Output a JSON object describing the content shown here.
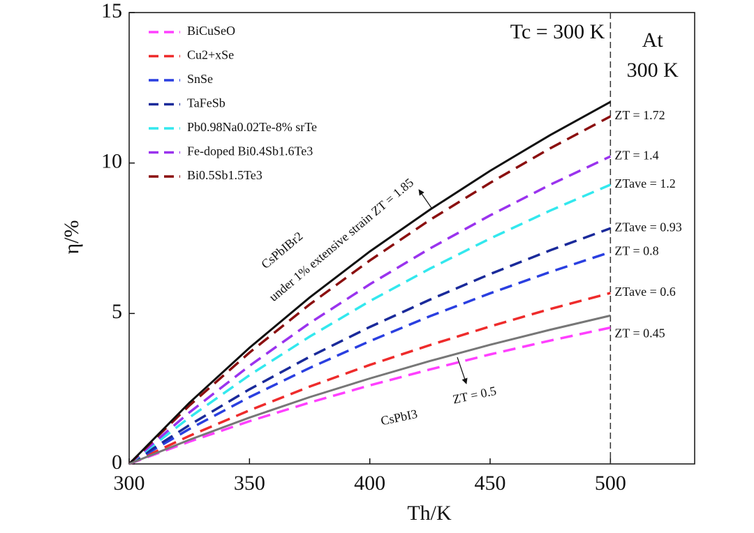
{
  "chart_data": {
    "type": "line",
    "xlabel": "Th/K",
    "ylabel": "η/%",
    "x": [
      300,
      325,
      350,
      375,
      400,
      425,
      450,
      475,
      500
    ],
    "xlim": [
      300,
      535
    ],
    "xticks": [
      300,
      350,
      400,
      450,
      500
    ],
    "ylim": [
      0,
      15
    ],
    "yticks": [
      0,
      5,
      10,
      15
    ],
    "legend": "upper left",
    "vline": 500,
    "vline_label": "Tc = 300 K",
    "side_label": [
      "At",
      "300 K"
    ],
    "series": [
      {
        "name": "BiCuSeO",
        "color": "#ff40ff",
        "style": "dashed",
        "end_label": "ZT = 0.45",
        "values": [
          0,
          0.74,
          1.42,
          2.04,
          2.61,
          3.14,
          3.64,
          4.1,
          4.53
        ]
      },
      {
        "name": "Cu2+xSe",
        "color": "#ee2b2b",
        "style": "dashed",
        "end_label": "ZTave = 0.6",
        "values": [
          0,
          0.93,
          1.78,
          2.57,
          3.29,
          3.95,
          4.57,
          5.15,
          5.68
        ]
      },
      {
        "name": "SnSe",
        "color": "#2a3fe0",
        "style": "dashed",
        "end_label": "ZT = 0.8",
        "values": [
          0,
          1.16,
          2.22,
          3.19,
          4.08,
          4.91,
          5.67,
          6.38,
          7.04
        ]
      },
      {
        "name": "TaFeSb",
        "color": "#1a2a9a",
        "style": "dashed",
        "end_label": "ZTave = 0.93",
        "values": [
          0,
          1.29,
          2.48,
          3.56,
          4.55,
          5.46,
          6.31,
          7.1,
          7.83
        ]
      },
      {
        "name": "Pb0.98Na0.02Te-8% srTe",
        "color": "#33e8ee",
        "style": "dashed",
        "end_label": "ZTave = 1.2",
        "values": [
          0,
          1.54,
          2.95,
          4.23,
          5.41,
          6.49,
          7.49,
          8.42,
          9.28
        ]
      },
      {
        "name": "Fe-doped Bi0.4Sb1.6Te3",
        "color": "#9a33ee",
        "style": "dashed",
        "end_label": "ZT = 1.4",
        "values": [
          0,
          1.71,
          3.26,
          4.68,
          5.97,
          7.16,
          8.26,
          9.28,
          10.22
        ]
      },
      {
        "name": "Bi0.5Sb1.5Te3",
        "color": "#8b1010",
        "style": "dashed",
        "end_label": "ZT = 1.72",
        "values": [
          0,
          1.94,
          3.7,
          5.3,
          6.76,
          8.11,
          9.34,
          10.49,
          11.55
        ]
      },
      {
        "name": "CsPbIBr2",
        "color": "#111111",
        "style": "solid",
        "note": "under 1% extensive strain ZT = 1.85",
        "values": [
          0,
          2.03,
          3.86,
          5.53,
          7.06,
          8.45,
          9.74,
          10.93,
          12.03
        ]
      },
      {
        "name": "CsPbI3",
        "color": "#777777",
        "style": "solid",
        "note": "ZT = 0.5",
        "values": [
          0,
          0.8,
          1.54,
          2.22,
          2.84,
          3.42,
          3.96,
          4.46,
          4.93
        ]
      }
    ]
  }
}
